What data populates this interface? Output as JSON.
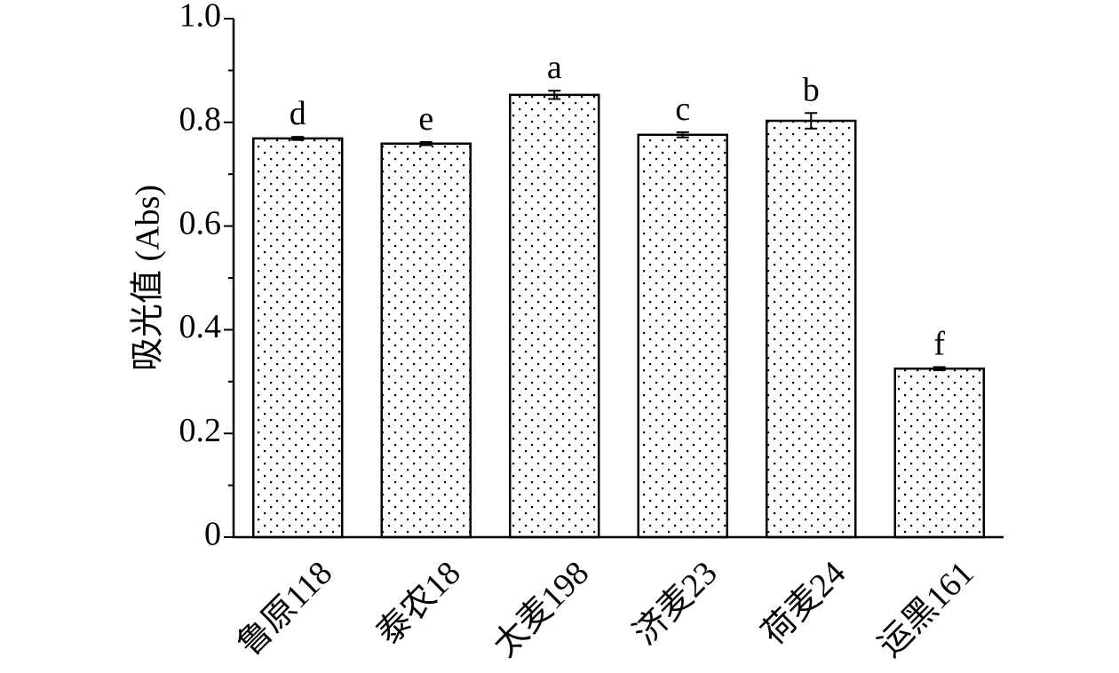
{
  "chart_data": {
    "type": "bar",
    "y_label": "吸光值 (Abs)",
    "categories": [
      "鲁原118",
      "泰农18",
      "太麦198",
      "济麦23",
      "荷麦24",
      "运黑161"
    ],
    "values": [
      0.769,
      0.759,
      0.853,
      0.776,
      0.803,
      0.325
    ],
    "errors": [
      0.003,
      0.003,
      0.008,
      0.005,
      0.015,
      0.003
    ],
    "labels": [
      "d",
      "e",
      "a",
      "c",
      "b",
      "f"
    ],
    "color": "#ffffff",
    "ylim": [
      0,
      1
    ],
    "yticks": [
      0,
      0.2,
      0.4,
      0.6,
      0.8,
      {
        "value": 1,
        "label": "1.0"
      }
    ],
    "yminorticks": [
      0.1,
      0.3,
      0.5,
      0.7,
      0.9
    ]
  }
}
